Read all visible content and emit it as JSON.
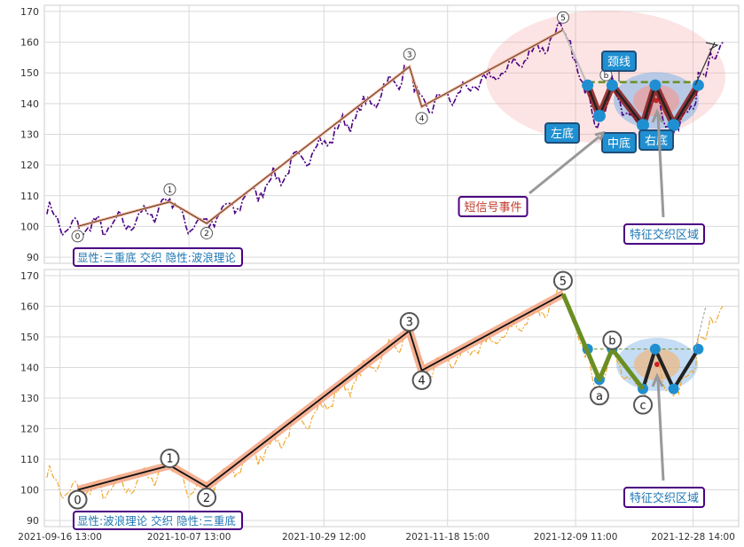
{
  "chart_data": [
    {
      "type": "line",
      "panel": "top",
      "ylim": [
        88,
        172
      ],
      "yticks": [
        90,
        100,
        110,
        120,
        130,
        140,
        150,
        160,
        170
      ],
      "grid": true,
      "price_color": "#4b0082",
      "wave_color": "#f4a582",
      "pattern_color": "#333333",
      "wave_points": [
        {
          "label": "0",
          "x": "2021-09-19 10:00",
          "y": 100
        },
        {
          "label": "1",
          "x": "2021-10-04 10:00",
          "y": 108
        },
        {
          "label": "2",
          "x": "2021-10-10 10:00",
          "y": 101
        },
        {
          "label": "3",
          "x": "2021-11-12 10:00",
          "y": 152
        },
        {
          "label": "4",
          "x": "2021-11-14 10:00",
          "y": 139
        },
        {
          "label": "5",
          "x": "2021-12-07 10:00",
          "y": 164
        }
      ],
      "wave_labels_extra": [
        {
          "label": "b",
          "x": "2021-12-14 10:00",
          "y": 147
        }
      ],
      "triple_bottom": [
        {
          "x": "2021-12-11 10:00",
          "y": 146
        },
        {
          "x": "2021-12-13 08:00",
          "y": 136
        },
        {
          "x": "2021-12-15 10:00",
          "y": 146
        },
        {
          "x": "2021-12-20 10:00",
          "y": 133
        },
        {
          "x": "2021-12-22 10:00",
          "y": 146
        },
        {
          "x": "2021-12-25 10:00",
          "y": 133
        },
        {
          "x": "2021-12-29 10:00",
          "y": 146
        }
      ],
      "neckline_y": 147,
      "annotations": {
        "neckline": "颈线",
        "left_bottom": "左底",
        "middle_bottom": "中底",
        "right_bottom": "右底",
        "short_signal": "短信号事件",
        "feature_zone": "特征交织区域"
      },
      "legend_text": "显性:三重底 交织 隐性:波浪理论"
    },
    {
      "type": "line",
      "panel": "bottom",
      "ylim": [
        88,
        172
      ],
      "yticks": [
        90,
        100,
        110,
        120,
        130,
        140,
        150,
        160,
        170
      ],
      "grid": true,
      "price_color": "#f0a830",
      "wave_points": [
        {
          "label": "0",
          "x": "2021-09-19 10:00",
          "y": 100
        },
        {
          "label": "1",
          "x": "2021-10-04 10:00",
          "y": 108
        },
        {
          "label": "2",
          "x": "2021-10-10 10:00",
          "y": 101
        },
        {
          "label": "3",
          "x": "2021-11-12 10:00",
          "y": 152
        },
        {
          "label": "4",
          "x": "2021-11-14 10:00",
          "y": 139
        },
        {
          "label": "5",
          "x": "2021-12-07 10:00",
          "y": 164
        }
      ],
      "correction_points": [
        {
          "label": "a",
          "x": "2021-12-13 08:00",
          "y": 136
        },
        {
          "label": "b",
          "x": "2021-12-15 10:00",
          "y": 146
        },
        {
          "label": "c",
          "x": "2021-12-20 10:00",
          "y": 133
        }
      ],
      "annotations": {
        "feature_zone": "特征交织区域"
      },
      "legend_text": "显性:波浪理论 交织 隐性:三重底"
    }
  ],
  "x_axis": {
    "ticks": [
      {
        "label": "2021-09-16 13:00",
        "x": "2021-09-16 13:00"
      },
      {
        "label": "2021-10-07 13:00",
        "x": "2021-10-07 13:00"
      },
      {
        "label": "2021-10-29 12:00",
        "x": "2021-10-29 12:00"
      },
      {
        "label": "2021-11-18 15:00",
        "x": "2021-11-18 15:00"
      },
      {
        "label": "2021-12-09 11:00",
        "x": "2021-12-09 11:00"
      },
      {
        "label": "2021-12-28 14:00",
        "x": "2021-12-28 14:00"
      }
    ],
    "range": [
      "2021-09-14 00:00",
      "2022-01-05 00:00"
    ]
  }
}
